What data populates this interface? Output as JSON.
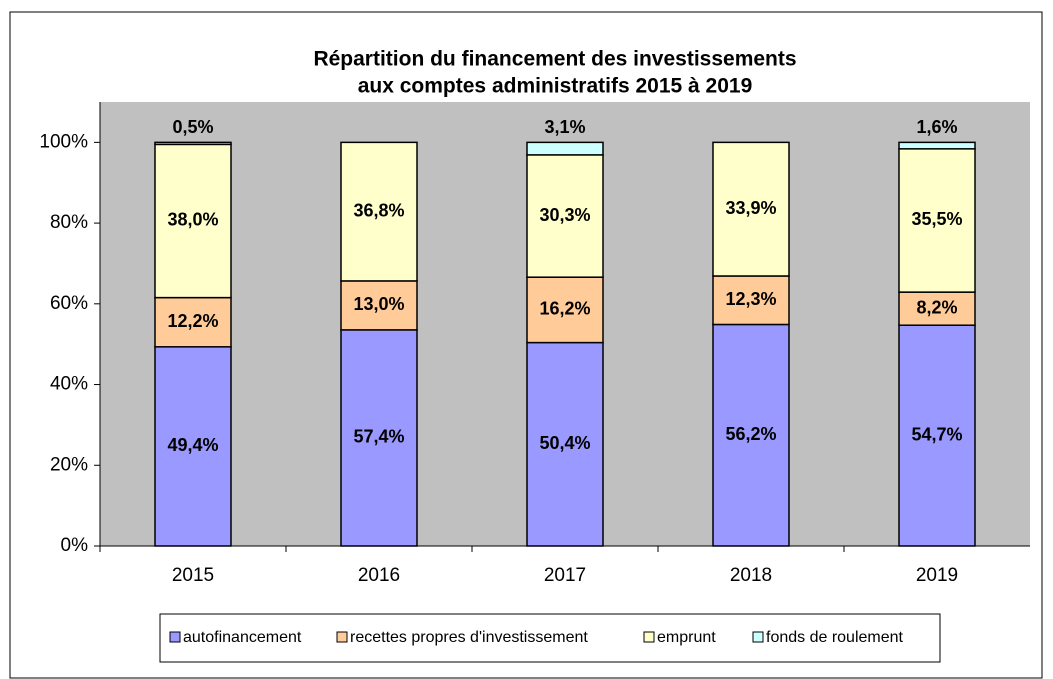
{
  "chart_data": {
    "type": "stacked_percent_bar",
    "title": "Répartition du financement des investissements",
    "subtitle": "aux comptes administratifs 2015 à 2019",
    "categories": [
      "2015",
      "2016",
      "2017",
      "2018",
      "2019"
    ],
    "series": [
      {
        "name": "autofinancement",
        "color": "#9999ff",
        "values": [
          49.4,
          57.4,
          50.4,
          56.2,
          54.7
        ],
        "value_labels": [
          "49,4%",
          "57,4%",
          "50,4%",
          "56,2%",
          "54,7%"
        ]
      },
      {
        "name": "recettes propres d'investissement",
        "color": "#ffcc99",
        "values": [
          12.2,
          13.0,
          16.2,
          12.3,
          8.2
        ],
        "value_labels": [
          "12,2%",
          "13,0%",
          "16,2%",
          "12,3%",
          "8,2%"
        ]
      },
      {
        "name": "emprunt",
        "color": "#ffffcc",
        "values": [
          38.0,
          36.8,
          30.3,
          33.9,
          35.5
        ],
        "value_labels": [
          "38,0%",
          "36,8%",
          "30,3%",
          "33,9%",
          "35,5%"
        ]
      },
      {
        "name": "fonds de roulement",
        "color": "#ccffff",
        "values": [
          0.5,
          null,
          3.1,
          null,
          1.6
        ],
        "value_labels": [
          "0,5%",
          null,
          "3,1%",
          null,
          "1,6%"
        ]
      }
    ],
    "ylim": [
      0,
      110
    ],
    "yticks": [
      {
        "value": 0,
        "label": "0%"
      },
      {
        "value": 20,
        "label": "20%"
      },
      {
        "value": 40,
        "label": "40%"
      },
      {
        "value": 60,
        "label": "60%"
      },
      {
        "value": 80,
        "label": "80%"
      },
      {
        "value": 100,
        "label": "100%"
      }
    ],
    "legend": "bottom"
  }
}
